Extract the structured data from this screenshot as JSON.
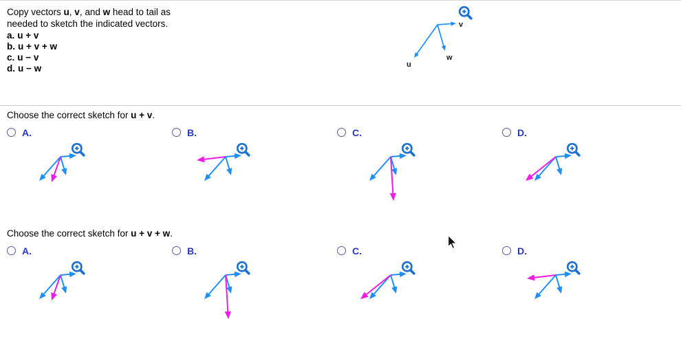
{
  "problem": {
    "line1": [
      "Copy vectors ",
      "u",
      ", ",
      "v",
      ", and ",
      "w",
      " head to tail as"
    ],
    "line2": "needed to sketch the indicated vectors.",
    "parts": [
      {
        "label": "a.",
        "expr": "u + v"
      },
      {
        "label": "b.",
        "expr": "u + v + w"
      },
      {
        "label": "c.",
        "expr": "u − v"
      },
      {
        "label": "d.",
        "expr": "u − w"
      }
    ]
  },
  "figure": {
    "vector_labels": {
      "v": "v",
      "u": "u",
      "w": "w"
    },
    "zoom_icon": "magnifier-plus"
  },
  "questions": [
    {
      "prompt": [
        "Choose the correct sketch for ",
        "u + v",
        "."
      ],
      "options": [
        {
          "label": "A.",
          "sketch": "short-down"
        },
        {
          "label": "B.",
          "sketch": "left"
        },
        {
          "label": "C.",
          "sketch": "long-down"
        },
        {
          "label": "D.",
          "sketch": "long-down-left"
        }
      ]
    },
    {
      "prompt": [
        "Choose the correct sketch for ",
        "u + v + w",
        "."
      ],
      "options": [
        {
          "label": "A.",
          "sketch": "short-down"
        },
        {
          "label": "B.",
          "sketch": "long-down"
        },
        {
          "label": "C.",
          "sketch": "long-down-left"
        },
        {
          "label": "D.",
          "sketch": "left"
        }
      ]
    }
  ],
  "colors": {
    "vector_blue": "#1e8fff",
    "result_magenta": "#ee1ce6",
    "zoom_icon_blue": "#1d71d1",
    "option_label_blue": "#2536cb"
  }
}
